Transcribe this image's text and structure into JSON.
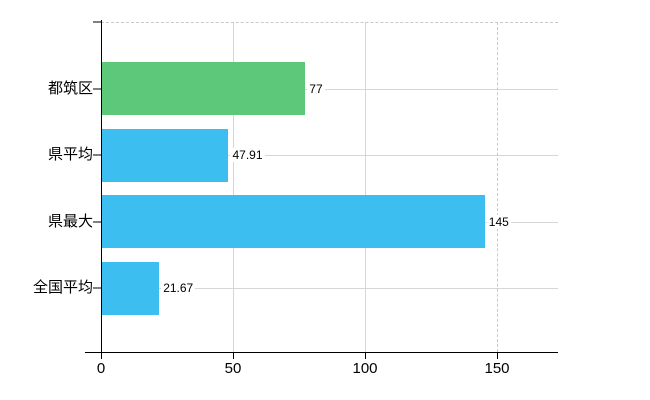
{
  "chart_data": {
    "type": "bar",
    "orientation": "horizontal",
    "title": "",
    "xlabel": "",
    "ylabel": "",
    "categories": [
      "都筑区",
      "県平均",
      "県最大",
      "全国平均"
    ],
    "series": [
      {
        "name": "",
        "values": [
          77,
          47.91,
          145,
          21.67
        ]
      }
    ],
    "value_labels": [
      "77",
      "47.91",
      "145",
      "21.67"
    ],
    "point_colors": [
      "#5ec87a",
      "#3cbef0",
      "#3cbef0",
      "#3cbef0"
    ],
    "x_axis": {
      "range": [
        0,
        173
      ],
      "ticks": [
        {
          "label": "0",
          "value": 0,
          "gridline": "none"
        },
        {
          "label": "50",
          "value": 50,
          "gridline": "solid"
        },
        {
          "label": "100",
          "value": 100,
          "gridline": "solid"
        },
        {
          "label": "150",
          "value": 150,
          "gridline": "dashed"
        }
      ]
    },
    "grid": {
      "horizontal_lines": "category-centers",
      "plot_top_border": "dashed"
    },
    "legend": false,
    "colors": {
      "background": "#ffffff",
      "gridline": "#d6d6d6",
      "dashed_line": "#c9c9c9",
      "axis": "#000000",
      "text": "#000000"
    }
  }
}
